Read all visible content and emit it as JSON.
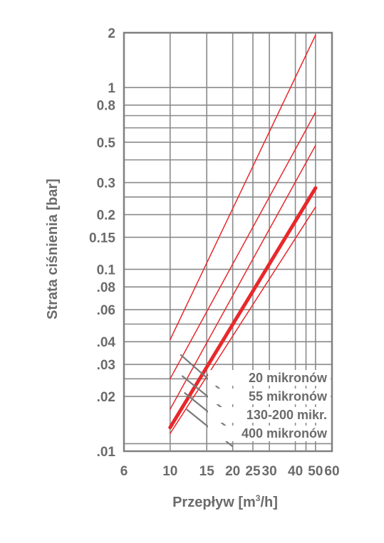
{
  "chart_data": {
    "type": "line",
    "xlabel_main": "Przepływ [m",
    "xlabel_sup": "3",
    "xlabel_tail": "/h]",
    "ylabel": "Strata ciśnienia [bar]",
    "x_scale": "log",
    "y_scale": "log",
    "xlim": [
      6,
      60
    ],
    "ylim": [
      0.01,
      2
    ],
    "grid": true,
    "x_ticks": [
      {
        "value": 6,
        "label": "6"
      },
      {
        "value": 10,
        "label": "10"
      },
      {
        "value": 15,
        "label": "15"
      },
      {
        "value": 20,
        "label": "20"
      },
      {
        "value": 25,
        "label": "25"
      },
      {
        "value": 30,
        "label": "30"
      },
      {
        "value": 40,
        "label": "40"
      },
      {
        "value": 50,
        "label": "50"
      },
      {
        "value": 60,
        "label": "60"
      }
    ],
    "y_ticks": [
      {
        "value": 2,
        "label": "2"
      },
      {
        "value": 1,
        "label": "1"
      },
      {
        "value": 0.8,
        "label": "0.8"
      },
      {
        "value": 0.5,
        "label": "0.5"
      },
      {
        "value": 0.3,
        "label": "0.3"
      },
      {
        "value": 0.2,
        "label": "0.2"
      },
      {
        "value": 0.15,
        "label": "0.15"
      },
      {
        "value": 0.1,
        "label": "0.1"
      },
      {
        "value": 0.08,
        "label": ".08"
      },
      {
        "value": 0.06,
        "label": ".06"
      },
      {
        "value": 0.04,
        "label": ".04"
      },
      {
        "value": 0.03,
        "label": ".03"
      },
      {
        "value": 0.02,
        "label": ".02"
      },
      {
        "value": 0.01,
        "label": ".01"
      }
    ],
    "extra_y_gridlines": [
      0.7,
      0.6,
      0.4,
      0.25,
      0.05,
      0.025,
      0.011
    ],
    "extra_x_gridlines": [
      45
    ],
    "series": [
      {
        "values": [
          [
            10,
            0.041
          ],
          [
            50,
            1.94
          ]
        ],
        "width": 1.5
      },
      {
        "values": [
          [
            10,
            0.025
          ],
          [
            50,
            0.73
          ]
        ],
        "width": 1.5
      },
      {
        "values": [
          [
            10,
            0.017
          ],
          [
            50,
            0.48
          ]
        ],
        "width": 1.5
      },
      {
        "values": [
          [
            10,
            0.0135
          ],
          [
            50,
            0.28
          ]
        ],
        "width": 5
      },
      {
        "values": [
          [
            10,
            0.0125
          ],
          [
            50,
            0.22
          ]
        ],
        "width": 1.5
      }
    ],
    "series_color": "#e8282b",
    "legend": [
      "20 mikronów",
      "55 mikronów",
      "130-200 mikr.",
      "400 mikronów"
    ],
    "legend_leaders": [
      {
        "from": [
          11.2,
          0.034
        ],
        "to": [
          20,
          0.019
        ]
      },
      {
        "from": [
          11.4,
          0.026
        ],
        "to": [
          20,
          0.0155
        ]
      },
      {
        "from": [
          11.7,
          0.021
        ],
        "to": [
          20,
          0.0128
        ]
      },
      {
        "from": [
          12,
          0.017
        ],
        "to": [
          20,
          0.0106
        ]
      }
    ]
  }
}
